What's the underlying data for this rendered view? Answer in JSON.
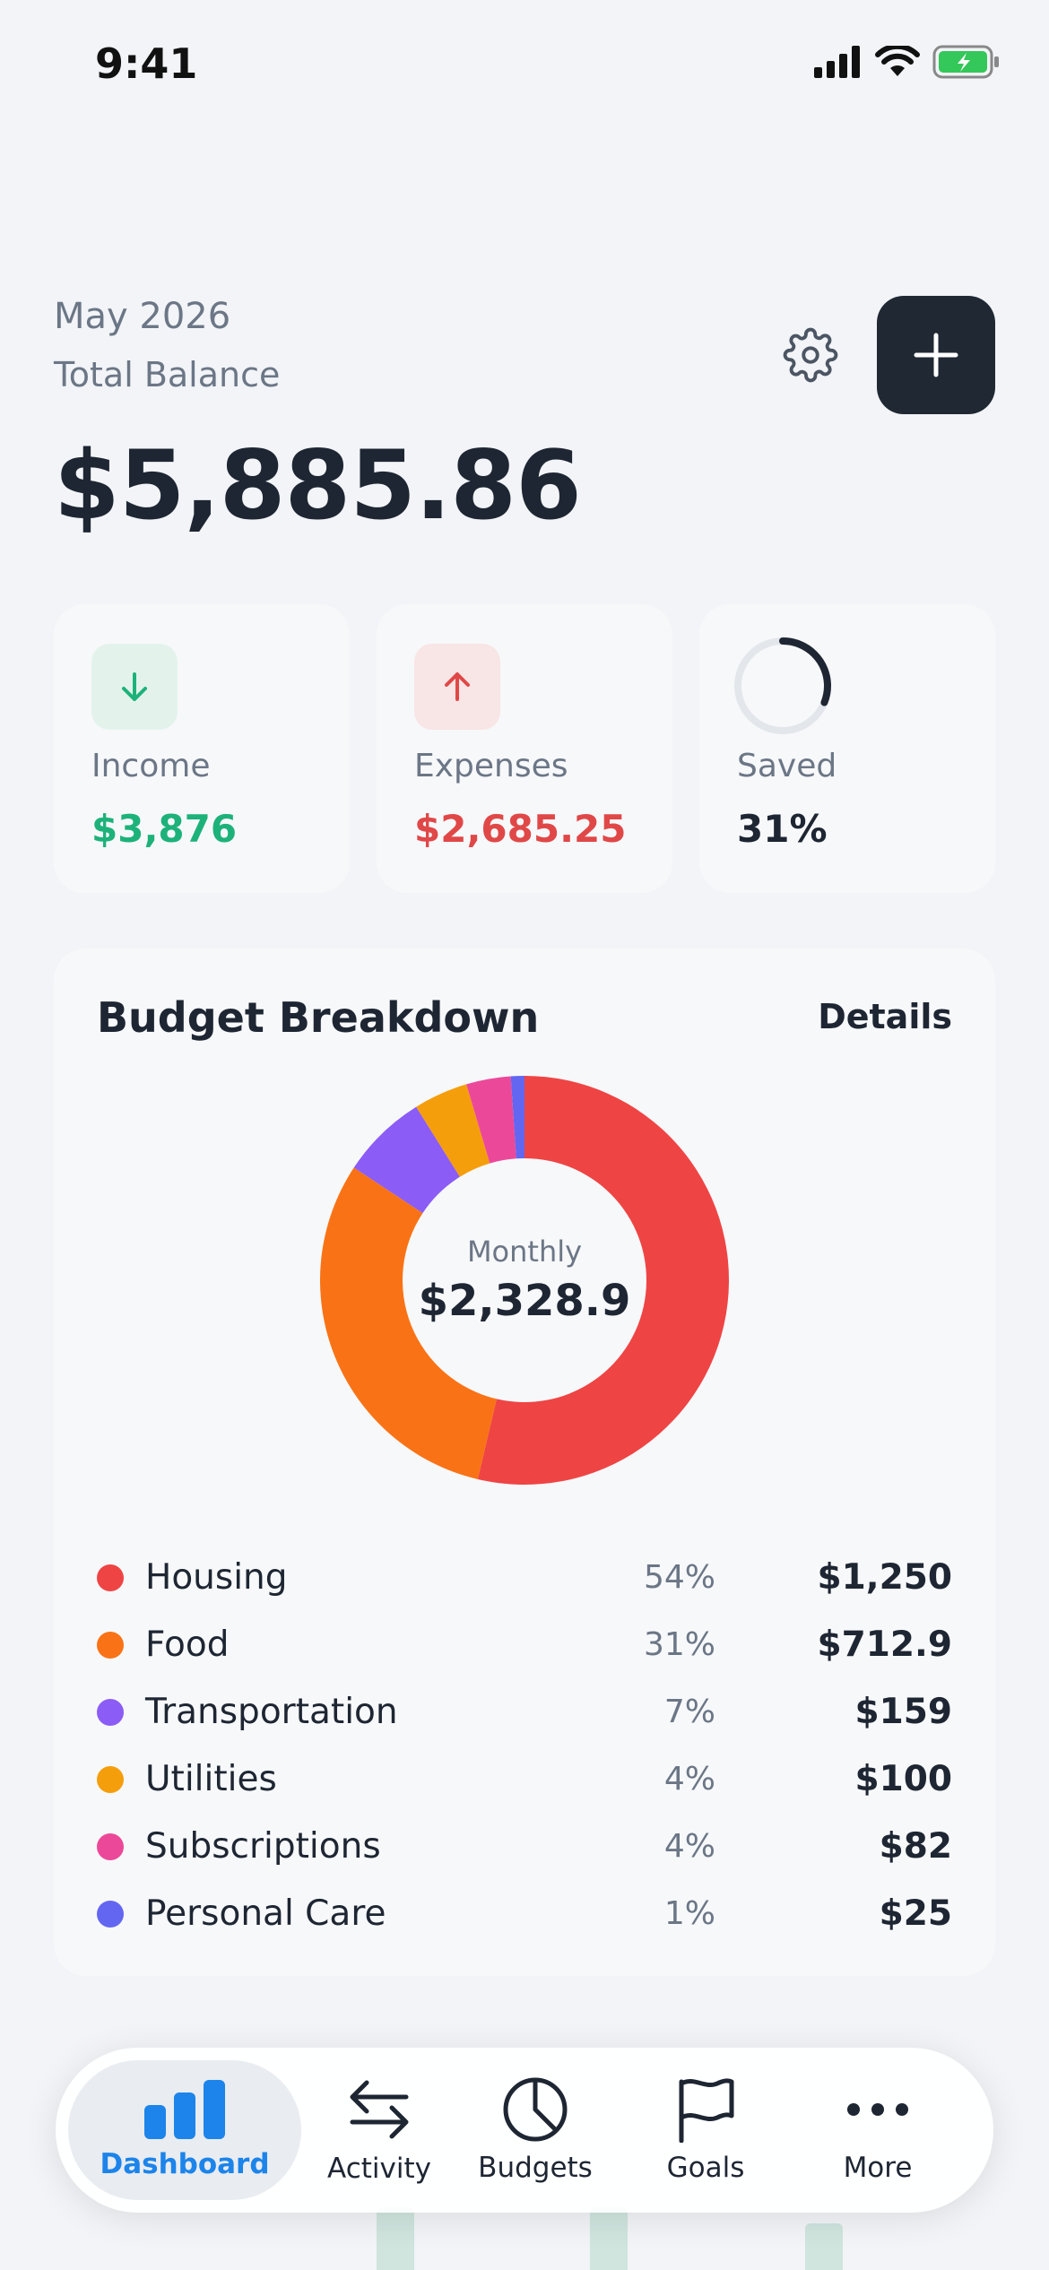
{
  "status_bar": {
    "time": "9:41"
  },
  "header": {
    "month": "May 2026",
    "balance_label": "Total Balance",
    "balance": "$5,885.86"
  },
  "stats": [
    {
      "label": "Income",
      "value": "$3,876",
      "icon": "arrow-down-icon",
      "color": "#1db27a",
      "bg": "#e3f3ec"
    },
    {
      "label": "Expenses",
      "value": "$2,685.25",
      "icon": "arrow-up-icon",
      "color": "#e04848",
      "bg": "#f8e5e5"
    },
    {
      "label": "Saved",
      "value": "31%",
      "icon": "progress-ring-icon",
      "color": "#1e2633",
      "progress": 0.31
    }
  ],
  "budget": {
    "title": "Budget Breakdown",
    "details_label": "Details",
    "center_label": "Monthly",
    "center_value": "$2,328.9",
    "categories": [
      {
        "name": "Housing",
        "pct": "54%",
        "amount": "$1,250",
        "value": 1250,
        "color": "#ef4444"
      },
      {
        "name": "Food",
        "pct": "31%",
        "amount": "$712.9",
        "value": 712.9,
        "color": "#f97316"
      },
      {
        "name": "Transportation",
        "pct": "7%",
        "amount": "$159",
        "value": 159,
        "color": "#8b5cf6"
      },
      {
        "name": "Utilities",
        "pct": "4%",
        "amount": "$100",
        "value": 100,
        "color": "#f59e0b"
      },
      {
        "name": "Subscriptions",
        "pct": "4%",
        "amount": "$82",
        "value": 82,
        "color": "#ec4899"
      },
      {
        "name": "Personal Care",
        "pct": "1%",
        "amount": "$25",
        "value": 25,
        "color": "#6366f1"
      }
    ]
  },
  "tabbar": {
    "tabs": [
      {
        "label": "Dashboard",
        "icon": "bar-chart-icon",
        "active": true
      },
      {
        "label": "Activity",
        "icon": "transfer-arrows-icon",
        "active": false
      },
      {
        "label": "Budgets",
        "icon": "pie-chart-icon",
        "active": false
      },
      {
        "label": "Goals",
        "icon": "flag-icon",
        "active": false
      },
      {
        "label": "More",
        "icon": "more-dots-icon",
        "active": false
      }
    ]
  },
  "colors": {
    "accent": "#1c84ea",
    "dark_button": "#1f2833",
    "income": "#1db27a",
    "expense": "#e04848"
  }
}
